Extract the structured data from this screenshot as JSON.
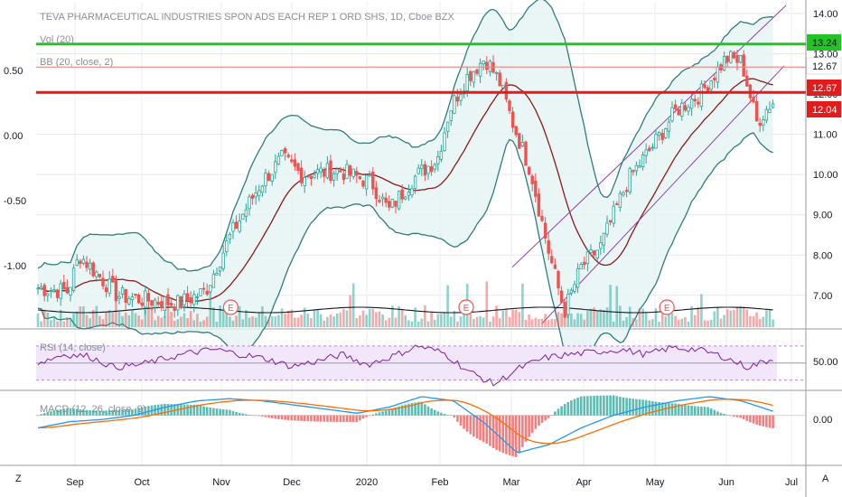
{
  "header": {
    "title": "TEVA PHARMACEUTICAL INDUSTRIES SPON ADS EACH REP 1 ORD SHS, 1D, Cboe BZX",
    "vol_label": "Vol (20)",
    "bb_label": "BB (20, close, 2)"
  },
  "rsi": {
    "label": "RSI (14, close)",
    "tick": "50.00"
  },
  "macd": {
    "label": "MACD (12, 26, close, 9)",
    "tick": "0.00"
  },
  "bottom_bar": {
    "z_label": "Z",
    "a_label": "A"
  },
  "colors": {
    "up": "#26a69a",
    "down": "#ef5350",
    "bb": "#2e7d7d",
    "bb_mid": "#8b1a1a",
    "channel": "#8e44ad",
    "green_line": "#21c521",
    "red_line": "#e31b1b",
    "pink_line": "#f08080",
    "rsi": "#7b1fa2",
    "macd": "#2196f3",
    "signal": "#ff6d00"
  },
  "chart_data": {
    "type": "candlestick",
    "title": "TEVA PHARMACEUTICAL INDUSTRIES SPON ADS EACH REP 1 ORD SHS, 1D, Cboe BZX",
    "x_labels": [
      "Sep",
      "Oct",
      "Nov",
      "Dec",
      "2020",
      "Feb",
      "Mar",
      "Apr",
      "May",
      "Jun",
      "Jul"
    ],
    "left_axis_ticks": [
      "0.50",
      "0.00",
      "-0.50",
      "-1.00"
    ],
    "right_axis_ticks": [
      "14.00",
      "13.00",
      "12.00",
      "11.00",
      "10.00",
      "9.00",
      "8.00",
      "7.00"
    ],
    "price_range": [
      6.3,
      14.2
    ],
    "price_anchors": [
      {
        "date": "Aug 12",
        "price": 7.2
      },
      {
        "date": "Aug 28",
        "price": 7.1
      },
      {
        "date": "Sep 03",
        "price": 8.0
      },
      {
        "date": "Sep 20",
        "price": 7.0
      },
      {
        "date": "Oct 01",
        "price": 6.9
      },
      {
        "date": "Oct 15",
        "price": 6.8
      },
      {
        "date": "Oct 25",
        "price": 7.1
      },
      {
        "date": "Nov 05",
        "price": 8.5
      },
      {
        "date": "Nov 18",
        "price": 9.8
      },
      {
        "date": "Nov 27",
        "price": 10.4
      },
      {
        "date": "Dec 05",
        "price": 10.0
      },
      {
        "date": "Dec 20",
        "price": 10.1
      },
      {
        "date": "Jan 03",
        "price": 9.8
      },
      {
        "date": "Jan 10",
        "price": 9.1
      },
      {
        "date": "Jan 20",
        "price": 9.9
      },
      {
        "date": "Jan 30",
        "price": 10.4
      },
      {
        "date": "Feb 05",
        "price": 11.6
      },
      {
        "date": "Feb 12",
        "price": 12.4
      },
      {
        "date": "Feb 20",
        "price": 12.9
      },
      {
        "date": "Feb 26",
        "price": 12.3
      },
      {
        "date": "Mar 02",
        "price": 11.2
      },
      {
        "date": "Mar 09",
        "price": 10.1
      },
      {
        "date": "Mar 16",
        "price": 8.2
      },
      {
        "date": "Mar 23",
        "price": 6.6
      },
      {
        "date": "Mar 30",
        "price": 7.7
      },
      {
        "date": "Apr 08",
        "price": 8.2
      },
      {
        "date": "Apr 20",
        "price": 9.9
      },
      {
        "date": "Apr 30",
        "price": 10.7
      },
      {
        "date": "May 10",
        "price": 11.6
      },
      {
        "date": "May 20",
        "price": 12.0
      },
      {
        "date": "Jun 01",
        "price": 12.9
      },
      {
        "date": "Jun 08",
        "price": 12.8
      },
      {
        "date": "Jun 15",
        "price": 11.3
      },
      {
        "date": "Jun 22",
        "price": 11.8
      }
    ],
    "price_tags": [
      {
        "value": "13.24",
        "color": "#21c521"
      },
      {
        "value": "12.67",
        "color": "#ffffff"
      },
      {
        "value": "12.67",
        "color": "#e31b1b"
      },
      {
        "value": "12.04",
        "color": "#e31b1b"
      }
    ],
    "horizontal_levels": [
      {
        "price": 13.24,
        "color": "#21c521"
      },
      {
        "price": 12.67,
        "color": "#f08080"
      },
      {
        "price": 12.04,
        "color": "#e31b1b"
      }
    ],
    "earnings_markers": [
      {
        "date": "Nov 05",
        "label": "E"
      },
      {
        "date": "Feb 12",
        "label": "E"
      },
      {
        "date": "May 06",
        "label": "E"
      }
    ],
    "rsi": {
      "range": [
        20,
        90
      ],
      "upper": 70,
      "lower": 30,
      "anchors": [
        50,
        60,
        58,
        45,
        48,
        55,
        62,
        66,
        60,
        55,
        46,
        52,
        60,
        48,
        58,
        70,
        62,
        40,
        25,
        44,
        56,
        60,
        63,
        66,
        60,
        68,
        66,
        58,
        45,
        55
      ]
    },
    "macd": {
      "range": [
        -1.2,
        0.6
      ],
      "anchors": [
        -0.3,
        -0.15,
        -0.1,
        0.0,
        0.2,
        0.35,
        0.4,
        0.35,
        0.25,
        0.15,
        0.05,
        0.2,
        0.45,
        0.35,
        -0.2,
        -0.9,
        -0.7,
        -0.3,
        0.0,
        0.2,
        0.35,
        0.45,
        0.35,
        0.1
      ]
    }
  }
}
